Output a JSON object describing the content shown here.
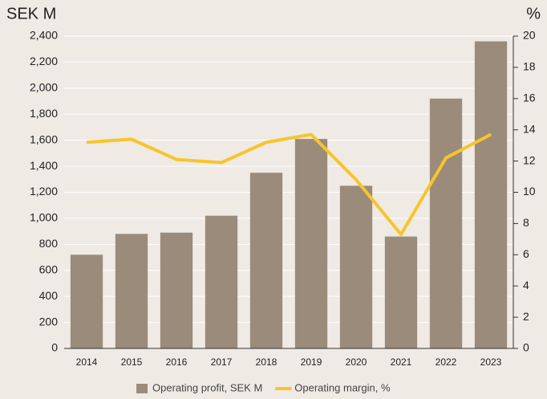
{
  "chart_data": {
    "type": "bar_line",
    "title": "SEK M",
    "y2_title": "%",
    "categories": [
      "2014",
      "2015",
      "2016",
      "2017",
      "2018",
      "2019",
      "2020",
      "2021",
      "2022",
      "2023"
    ],
    "series": [
      {
        "name": "Operating profit, SEK M",
        "type": "bar",
        "color": "#9b8b7b",
        "values": [
          720,
          880,
          890,
          1020,
          1350,
          1610,
          1250,
          860,
          1920,
          2360
        ]
      },
      {
        "name": "Operating margin, %",
        "type": "line",
        "axis": "y2",
        "color": "#f7c52b",
        "values": [
          13.2,
          13.4,
          12.1,
          11.9,
          13.2,
          13.7,
          10.8,
          7.3,
          12.2,
          13.7
        ]
      }
    ],
    "ylim": [
      0,
      2400
    ],
    "yticks": [
      0,
      200,
      400,
      600,
      800,
      {
        "value": 1000,
        "label": "1,000"
      },
      {
        "value": 1200,
        "label": "1,200"
      },
      {
        "value": 1400,
        "label": "1,400"
      },
      {
        "value": 1600,
        "label": "1,600"
      },
      {
        "value": 1800,
        "label": "1,800"
      },
      {
        "value": 2000,
        "label": "2,000"
      },
      {
        "value": 2200,
        "label": "2,200"
      },
      {
        "value": 2400,
        "label": "2,400"
      }
    ],
    "y2lim": [
      0,
      20
    ],
    "y2ticks": [
      0,
      2,
      4,
      6,
      8,
      10,
      12,
      14,
      16,
      18,
      20
    ],
    "grid": true,
    "legend": "bottom"
  }
}
